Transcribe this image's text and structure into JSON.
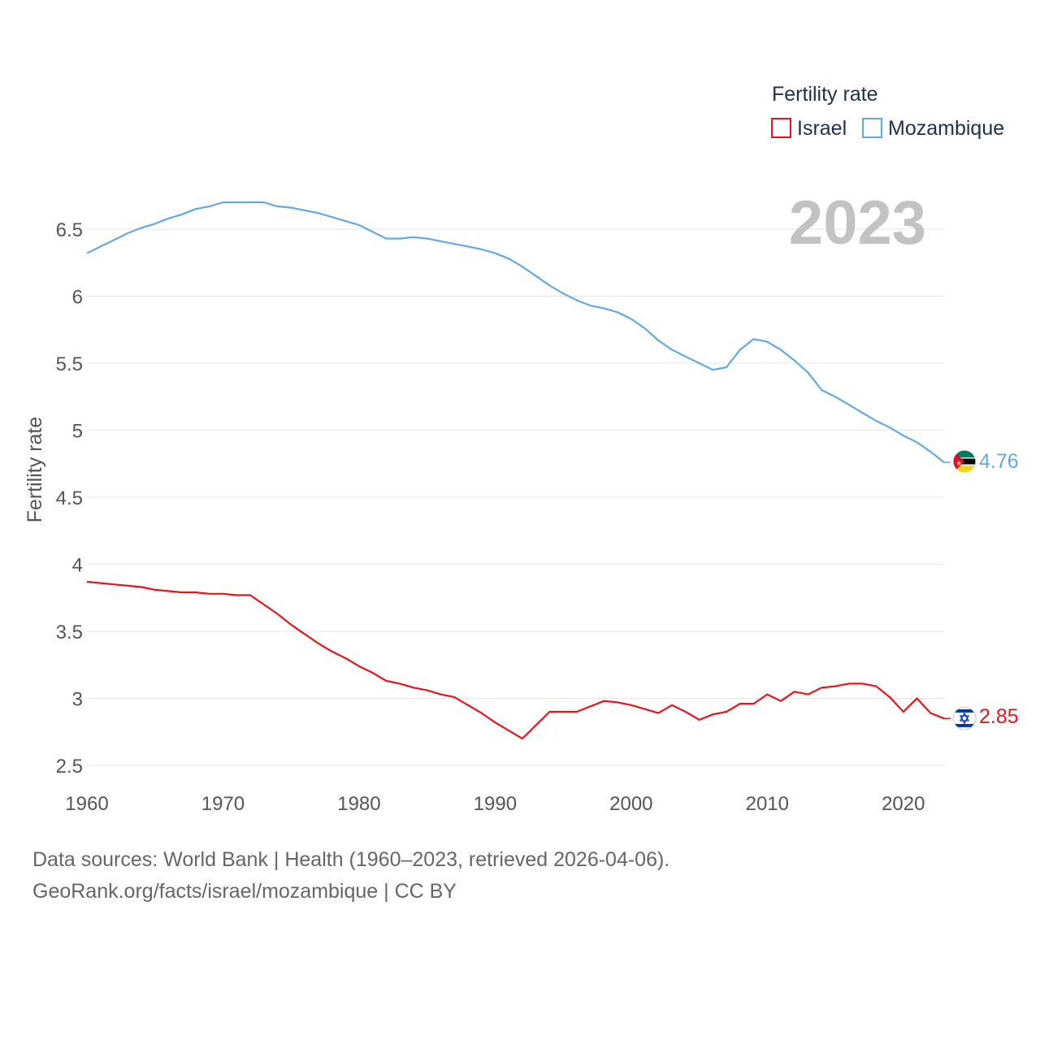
{
  "chart_data": {
    "type": "line",
    "legend": {
      "title": "Fertility rate",
      "position": "top-right"
    },
    "year_label": "2023",
    "ylabel": "Fertility rate",
    "xlabel": "",
    "xlim": [
      1960,
      2023
    ],
    "ylim": [
      2.5,
      6.7
    ],
    "x_ticks": [
      1960,
      1970,
      1980,
      1990,
      2000,
      2010,
      2020
    ],
    "y_ticks": [
      2.5,
      3,
      3.5,
      4,
      4.5,
      5,
      5.5,
      6,
      6.5
    ],
    "grid": true,
    "x": [
      1960,
      1961,
      1962,
      1963,
      1964,
      1965,
      1966,
      1967,
      1968,
      1969,
      1970,
      1971,
      1972,
      1973,
      1974,
      1975,
      1976,
      1977,
      1978,
      1979,
      1980,
      1981,
      1982,
      1983,
      1984,
      1985,
      1986,
      1987,
      1988,
      1989,
      1990,
      1991,
      1992,
      1993,
      1994,
      1995,
      1996,
      1997,
      1998,
      1999,
      2000,
      2001,
      2002,
      2003,
      2004,
      2005,
      2006,
      2007,
      2008,
      2009,
      2010,
      2011,
      2012,
      2013,
      2014,
      2015,
      2016,
      2017,
      2018,
      2019,
      2020,
      2021,
      2022,
      2023
    ],
    "series": [
      {
        "name": "Israel",
        "color": "#e8141b",
        "end_label": "2.85",
        "flag": "israel-flag-icon",
        "values": [
          3.87,
          3.86,
          3.85,
          3.84,
          3.83,
          3.81,
          3.8,
          3.79,
          3.79,
          3.78,
          3.78,
          3.77,
          3.77,
          3.7,
          3.63,
          3.55,
          3.48,
          3.41,
          3.35,
          3.3,
          3.24,
          3.19,
          3.13,
          3.11,
          3.08,
          3.06,
          3.03,
          3.01,
          2.95,
          2.89,
          2.82,
          2.76,
          2.7,
          2.8,
          2.9,
          2.9,
          2.9,
          2.94,
          2.98,
          2.97,
          2.95,
          2.92,
          2.89,
          2.95,
          2.9,
          2.84,
          2.88,
          2.9,
          2.96,
          2.96,
          3.03,
          2.98,
          3.05,
          3.03,
          3.08,
          3.09,
          3.11,
          3.11,
          3.09,
          3.01,
          2.9,
          3.0,
          2.89,
          2.85
        ]
      },
      {
        "name": "Mozambique",
        "color": "#63a8e6",
        "end_label": "4.76",
        "flag": "mozambique-flag-icon",
        "values": [
          6.32,
          6.37,
          6.42,
          6.47,
          6.51,
          6.54,
          6.58,
          6.61,
          6.65,
          6.67,
          6.7,
          6.7,
          6.7,
          6.7,
          6.67,
          6.66,
          6.64,
          6.62,
          6.59,
          6.56,
          6.53,
          6.48,
          6.43,
          6.43,
          6.44,
          6.43,
          6.41,
          6.39,
          6.37,
          6.35,
          6.32,
          6.28,
          6.22,
          6.15,
          6.08,
          6.02,
          5.97,
          5.93,
          5.91,
          5.88,
          5.83,
          5.76,
          5.67,
          5.6,
          5.55,
          5.5,
          5.45,
          5.47,
          5.6,
          5.68,
          5.66,
          5.6,
          5.52,
          5.43,
          5.3,
          5.25,
          5.19,
          5.13,
          5.07,
          5.02,
          4.96,
          4.91,
          4.84,
          4.76
        ]
      }
    ]
  },
  "footer": {
    "line1": "Data sources: World Bank | Health (1960–2023, retrieved 2026-04-06).",
    "line2": "GeoRank.org/facts/israel/mozambique | CC BY"
  }
}
